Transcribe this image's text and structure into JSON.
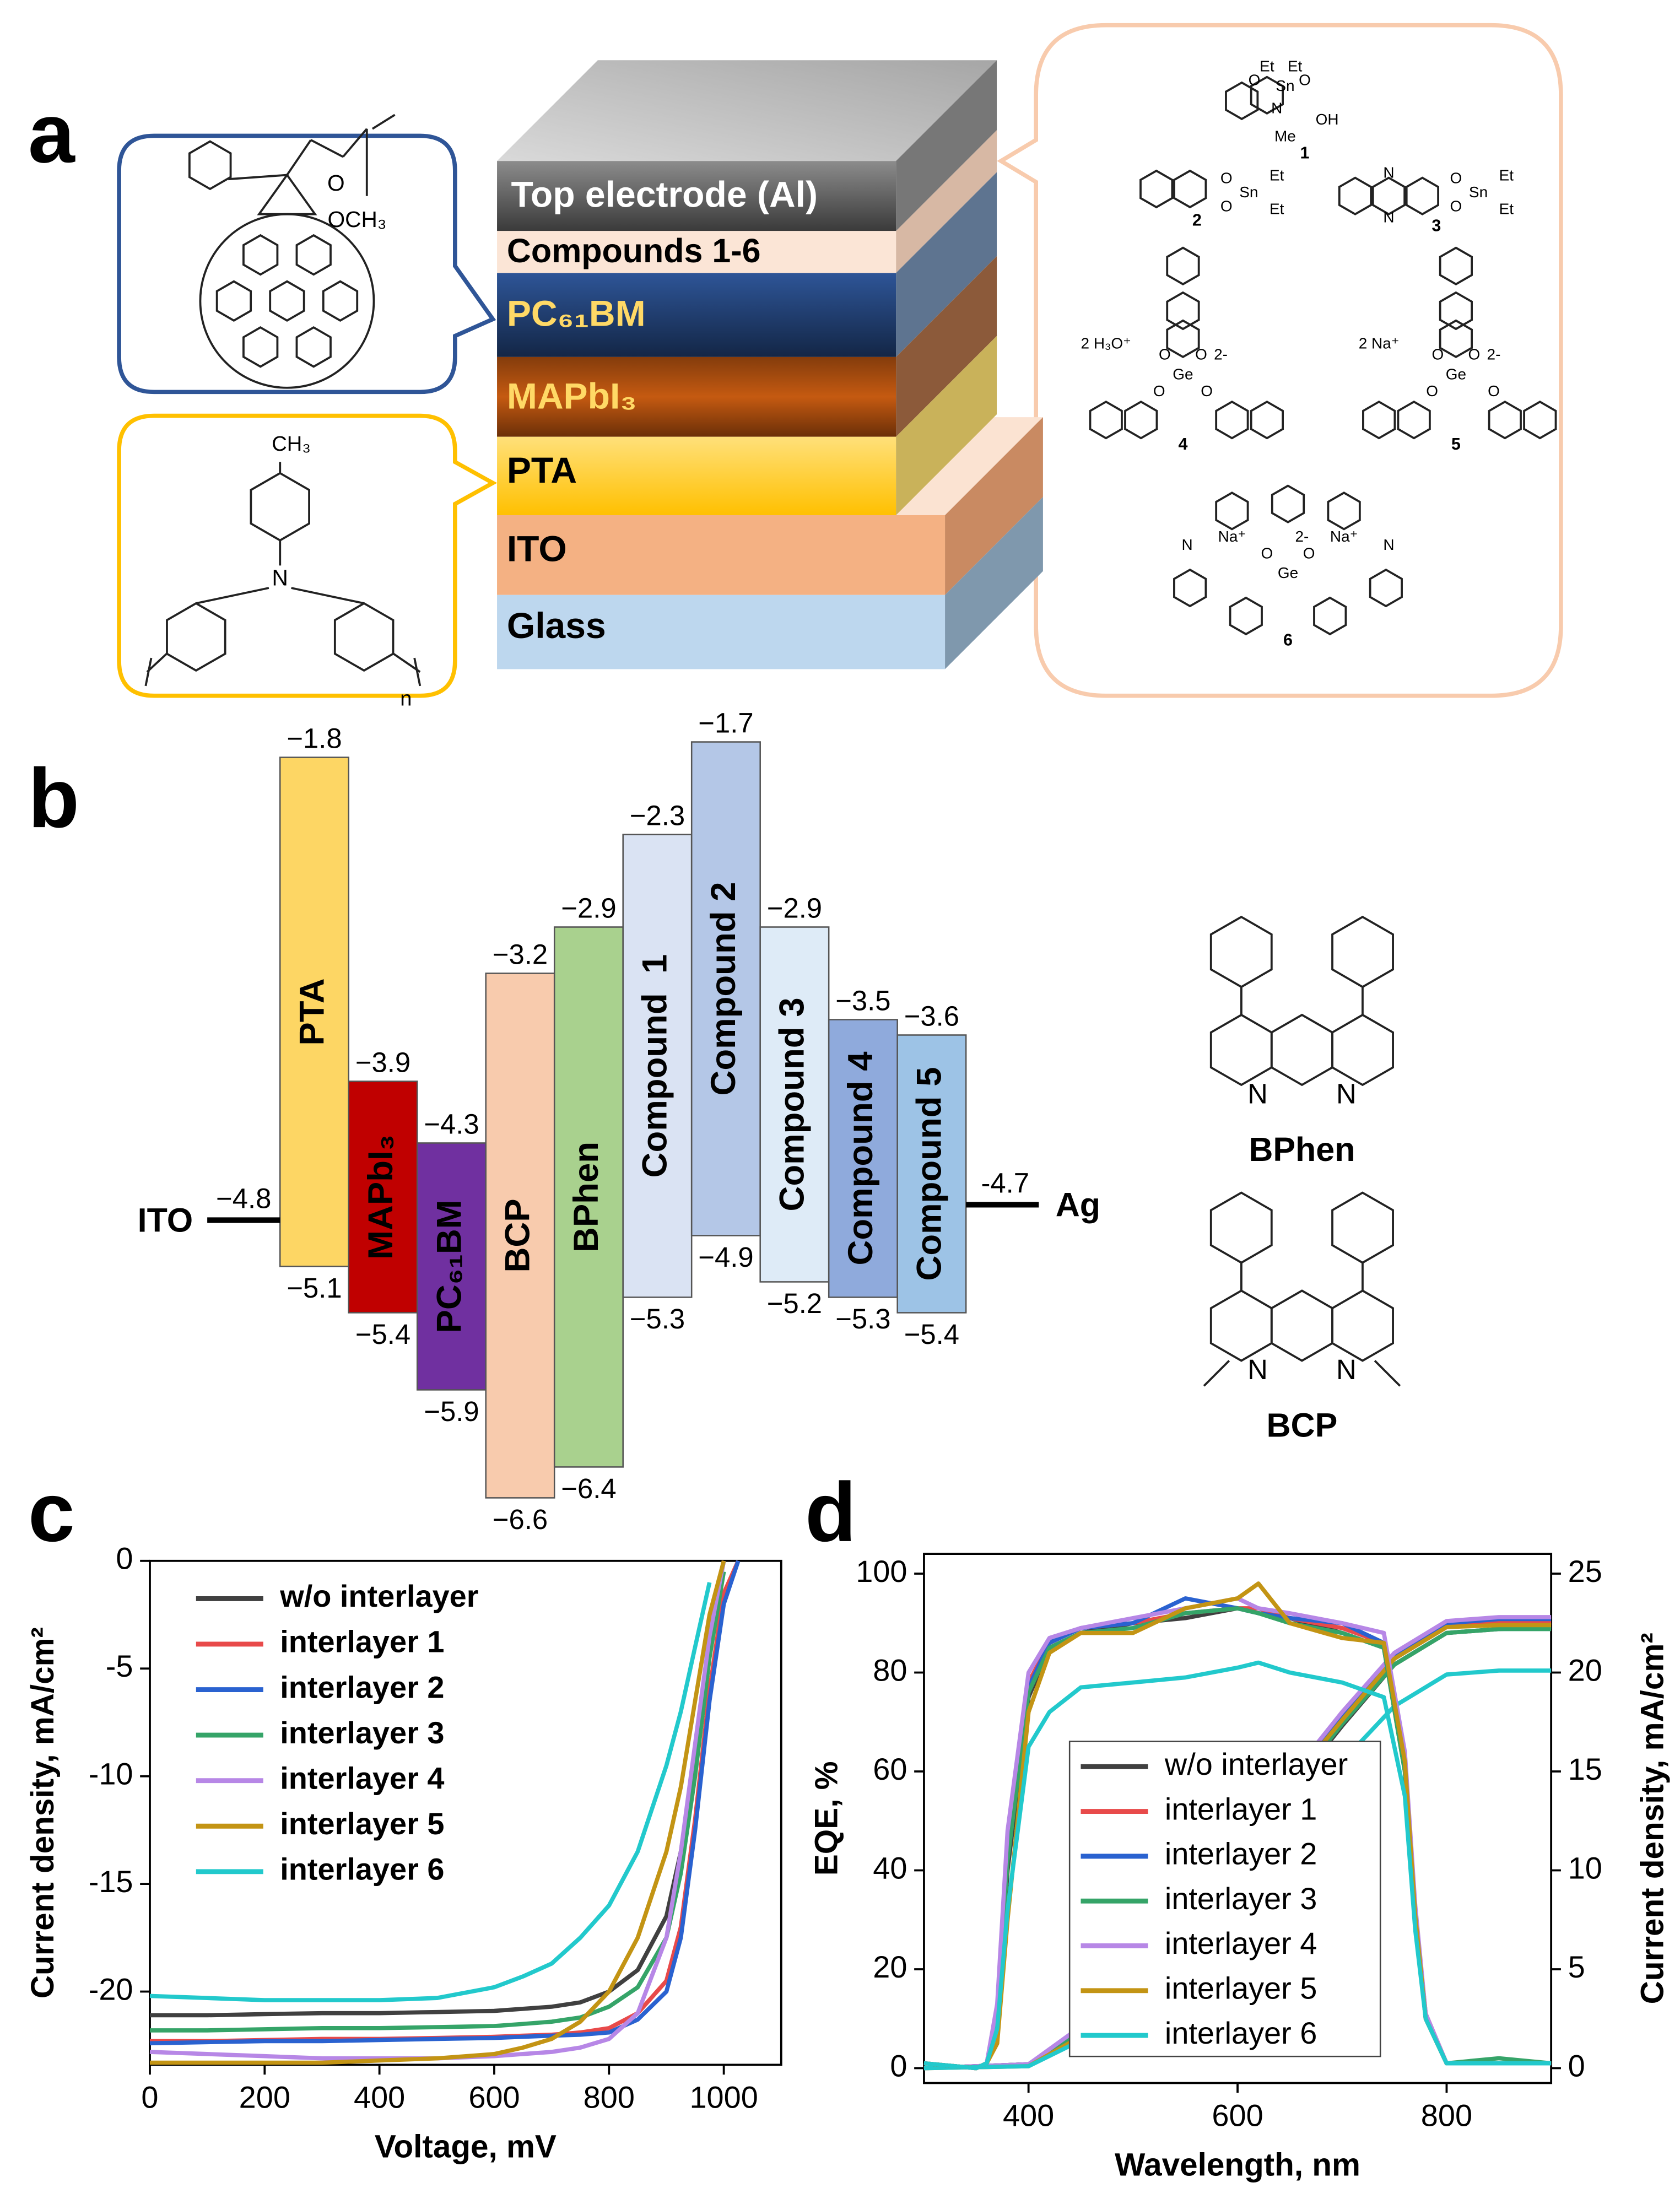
{
  "panel_labels": [
    "a",
    "b",
    "c",
    "d"
  ],
  "device_stack": {
    "layers": [
      "Top electrode (Al)",
      "Compounds 1-6",
      "PC₆₁BM",
      "MAPbI₃",
      "PTA",
      "ITO",
      "Glass"
    ]
  },
  "structures": {
    "pcbm": {
      "atoms": [
        "O",
        "OCH₃"
      ]
    },
    "pta": {
      "atoms": [
        "CH₃",
        "N",
        "n"
      ]
    },
    "compounds": [
      {
        "label": "1",
        "atoms": [
          "Et",
          "Et",
          "Sn",
          "O",
          "O",
          "N",
          "Me",
          "OH"
        ]
      },
      {
        "label": "2",
        "atoms": [
          "O",
          "O",
          "Sn",
          "Et",
          "Et"
        ]
      },
      {
        "label": "3",
        "atoms": [
          "O",
          "O",
          "Sn",
          "Et",
          "Et",
          "N",
          "N"
        ]
      },
      {
        "label": "4",
        "atoms": [
          "2 H₃O⁺",
          "Ge",
          "O",
          "O",
          "O",
          "O",
          "2-"
        ]
      },
      {
        "label": "5",
        "atoms": [
          "2 Na⁺",
          "Ge",
          "O",
          "O",
          "O",
          "O",
          "2-"
        ]
      },
      {
        "label": "6",
        "atoms": [
          "Na⁺",
          "Na⁺",
          "Ge",
          "O",
          "O",
          "N",
          "N",
          "2-"
        ]
      }
    ],
    "bphen": {
      "label": "BPhen",
      "atoms": [
        "N",
        "N"
      ]
    },
    "bcp": {
      "label": "BCP",
      "atoms": [
        "N",
        "N"
      ]
    }
  },
  "energy_diagram": {
    "materials": [
      {
        "name": "PTA",
        "color": "#fdd664",
        "lumo": -1.8,
        "homo": -5.1,
        "lumo_label": "−1.8",
        "homo_label": "−5.1"
      },
      {
        "name": "MAPbI₃",
        "color": "#c00000",
        "lumo": -3.9,
        "homo": -5.4,
        "lumo_label": "−3.9",
        "homo_label": "−5.4"
      },
      {
        "name": "PC₆₁BM",
        "color": "#7030a0",
        "lumo": -4.3,
        "homo": -5.9,
        "lumo_label": "−4.3",
        "homo_label": "−5.9"
      },
      {
        "name": "BCP",
        "color": "#f8cbad",
        "lumo": -3.2,
        "homo": -6.6,
        "lumo_label": "−3.2",
        "homo_label": "−6.6"
      },
      {
        "name": "BPhen",
        "color": "#a9d18e",
        "lumo": -2.9,
        "homo": -6.4,
        "lumo_label": "−2.9",
        "homo_label": "−6.4"
      },
      {
        "name": "Compound  1",
        "color": "#dae3f3",
        "lumo": -2.3,
        "homo": -5.3,
        "lumo_label": "−2.3",
        "homo_label": "−5.3"
      },
      {
        "name": "Compound 2",
        "color": "#b4c7e7",
        "lumo": -1.7,
        "homo": -4.9,
        "lumo_label": "−1.7",
        "homo_label": "−4.9"
      },
      {
        "name": "Compound 3",
        "color": "#deebf7",
        "lumo": -2.9,
        "homo": -5.2,
        "lumo_label": "−2.9",
        "homo_label": "−5.2"
      },
      {
        "name": "Compound 4",
        "color": "#8faadc",
        "lumo": -3.5,
        "homo": -5.3,
        "lumo_label": "−3.5",
        "homo_label": "−5.3"
      },
      {
        "name": "Compound 5",
        "color": "#9dc3e6",
        "lumo": -3.6,
        "homo": -5.4,
        "lumo_label": "−3.6",
        "homo_label": "−5.4"
      }
    ],
    "electrodes": [
      {
        "name": "ITO",
        "value": -4.8,
        "label": "−4.8"
      },
      {
        "name": "Ag",
        "value": -4.7,
        "label": "-4.7"
      }
    ]
  },
  "chart_data": [
    {
      "type": "line",
      "xlabel": "Voltage, mV",
      "ylabel": "Current density, mA/cm²",
      "xlim": [
        0,
        1100
      ],
      "ylim": [
        -23.4,
        0
      ],
      "xticks": [
        0,
        200,
        400,
        600,
        800,
        1000
      ],
      "yticks": [
        -20,
        -15,
        -10,
        -5,
        0
      ],
      "x": [
        0,
        100,
        200,
        300,
        400,
        500,
        600,
        650,
        700,
        750,
        800,
        850,
        900,
        925,
        950,
        975,
        1000,
        1025
      ],
      "series": [
        {
          "name": "w/o interlayer",
          "color": "#404040",
          "values": [
            -21.1,
            -21.1,
            -21.05,
            -21,
            -21,
            -20.95,
            -20.9,
            -20.8,
            -20.7,
            -20.5,
            -20,
            -19,
            -16.5,
            -13.5,
            -9,
            -3.5,
            0,
            null
          ]
        },
        {
          "name": "interlayer 1",
          "color": "#e84a4a",
          "values": [
            -22.3,
            -22.3,
            -22.25,
            -22.2,
            -22.2,
            -22.15,
            -22.1,
            -22.05,
            -22,
            -21.9,
            -21.7,
            -21,
            -19.5,
            -17,
            -12,
            -6,
            -1.5,
            0
          ]
        },
        {
          "name": "interlayer 2",
          "color": "#2a62d0",
          "values": [
            -22.4,
            -22.35,
            -22.3,
            -22.3,
            -22.25,
            -22.2,
            -22.15,
            -22.1,
            -22.05,
            -22,
            -21.9,
            -21.3,
            -20,
            -17.5,
            -12.5,
            -6.5,
            -2,
            0
          ]
        },
        {
          "name": "interlayer 3",
          "color": "#35a468",
          "values": [
            -21.8,
            -21.8,
            -21.75,
            -21.7,
            -21.7,
            -21.65,
            -21.6,
            -21.5,
            -21.4,
            -21.2,
            -20.7,
            -19.8,
            -17.5,
            -14.5,
            -10,
            -4.5,
            -0.5,
            null
          ]
        },
        {
          "name": "interlayer 4",
          "color": "#b787e6",
          "values": [
            -22.8,
            -22.9,
            -23,
            -23.1,
            -23.1,
            -23.1,
            -23,
            -22.9,
            -22.8,
            -22.6,
            -22.2,
            -21,
            -17.5,
            -13.5,
            -8.5,
            -3.5,
            0,
            null
          ]
        },
        {
          "name": "interlayer 5",
          "color": "#c39414",
          "values": [
            -23.3,
            -23.3,
            -23.3,
            -23.3,
            -23.2,
            -23.1,
            -22.9,
            -22.6,
            -22.2,
            -21.4,
            -20,
            -17.5,
            -13.5,
            -10.5,
            -6.5,
            -2.5,
            0,
            null
          ]
        },
        {
          "name": "interlayer 6",
          "color": "#22c9cc",
          "values": [
            -20.2,
            -20.3,
            -20.4,
            -20.4,
            -20.4,
            -20.3,
            -19.8,
            -19.3,
            -18.7,
            -17.5,
            -16,
            -13.5,
            -9.5,
            -7,
            -4,
            -1,
            null,
            null
          ]
        }
      ]
    },
    {
      "type": "line",
      "xlabel": "Wavelength, nm",
      "ylabel": "EQE, %",
      "y2label": "Current density, mA/cm²",
      "xlim": [
        300,
        900
      ],
      "ylim": [
        -3,
        104
      ],
      "y2lim": [
        -0.75,
        26
      ],
      "xticks": [
        400,
        600,
        800
      ],
      "yticks": [
        0,
        20,
        40,
        60,
        80,
        100
      ],
      "y2ticks": [
        0,
        5,
        10,
        15,
        20,
        25
      ],
      "x": [
        300,
        350,
        360,
        370,
        380,
        400,
        420,
        450,
        500,
        550,
        600,
        620,
        650,
        700,
        740,
        760,
        770,
        780,
        800,
        850,
        900
      ],
      "y2_x": [
        300,
        400,
        450,
        500,
        550,
        600,
        650,
        700,
        750,
        800,
        850,
        900
      ],
      "series": [
        {
          "name": "w/o interlayer",
          "color": "#404040",
          "values": [
            1,
            0,
            1,
            10,
            40,
            75,
            85,
            88,
            90,
            91,
            93,
            92,
            91,
            88,
            85,
            60,
            30,
            10,
            1,
            1,
            1
          ],
          "y2_values": [
            0,
            0.2,
            1.8,
            4.5,
            7.5,
            10.8,
            14,
            17.3,
            20.4,
            22,
            22.2,
            22.3
          ]
        },
        {
          "name": "interlayer 1",
          "color": "#e84a4a",
          "values": [
            1,
            0,
            1,
            12,
            45,
            78,
            86,
            89,
            90,
            92,
            93,
            93,
            91,
            89,
            86,
            62,
            32,
            11,
            1,
            1,
            1
          ],
          "y2_values": [
            0,
            0.2,
            2,
            4.8,
            7.9,
            11.2,
            14.4,
            17.6,
            20.7,
            22.3,
            22.5,
            22.5
          ]
        },
        {
          "name": "interlayer 2",
          "color": "#2a62d0",
          "values": [
            1,
            0,
            1,
            11,
            44,
            77,
            86,
            89,
            90,
            95,
            93,
            92,
            91,
            90,
            86,
            62,
            31,
            10,
            1,
            1,
            1
          ],
          "y2_values": [
            0,
            0.2,
            2,
            4.8,
            8,
            11.3,
            14.5,
            17.8,
            20.9,
            22.5,
            22.7,
            22.7
          ]
        },
        {
          "name": "interlayer 3",
          "color": "#35a468",
          "values": [
            1,
            0,
            1,
            10,
            42,
            76,
            85,
            88,
            89,
            92,
            93,
            92,
            90,
            88,
            85,
            60,
            30,
            10,
            1,
            2,
            1
          ],
          "y2_values": [
            0,
            0.2,
            1.9,
            4.6,
            7.6,
            10.9,
            14.1,
            17.4,
            20.4,
            22,
            22.2,
            22.2
          ]
        },
        {
          "name": "interlayer 4",
          "color": "#b787e6",
          "values": [
            1,
            0,
            1,
            13,
            48,
            80,
            87,
            89,
            91,
            93,
            95,
            93,
            92,
            90,
            88,
            64,
            33,
            11,
            1,
            1,
            1
          ],
          "y2_values": [
            0,
            0.2,
            2.1,
            4.9,
            8.1,
            11.4,
            14.7,
            18,
            21,
            22.6,
            22.8,
            22.8
          ]
        },
        {
          "name": "interlayer 5",
          "color": "#c39414",
          "values": [
            1,
            0,
            1,
            5,
            30,
            72,
            84,
            88,
            88,
            93,
            95,
            98,
            90,
            87,
            86,
            62,
            31,
            10,
            1,
            1,
            1
          ],
          "y2_values": [
            0,
            0.1,
            1.6,
            4.5,
            7.7,
            11.1,
            14.4,
            17.6,
            20.7,
            22.3,
            22.4,
            22.4
          ]
        },
        {
          "name": "interlayer 6",
          "color": "#22c9cc",
          "values": [
            1,
            0,
            1,
            8,
            32,
            65,
            72,
            77,
            78,
            79,
            81,
            82,
            80,
            78,
            75,
            55,
            28,
            10,
            1,
            1,
            1
          ],
          "y2_values": [
            0,
            0.1,
            1.4,
            3.9,
            6.7,
            9.6,
            12.5,
            15.5,
            18.3,
            19.9,
            20.1,
            20.1
          ]
        }
      ]
    }
  ]
}
